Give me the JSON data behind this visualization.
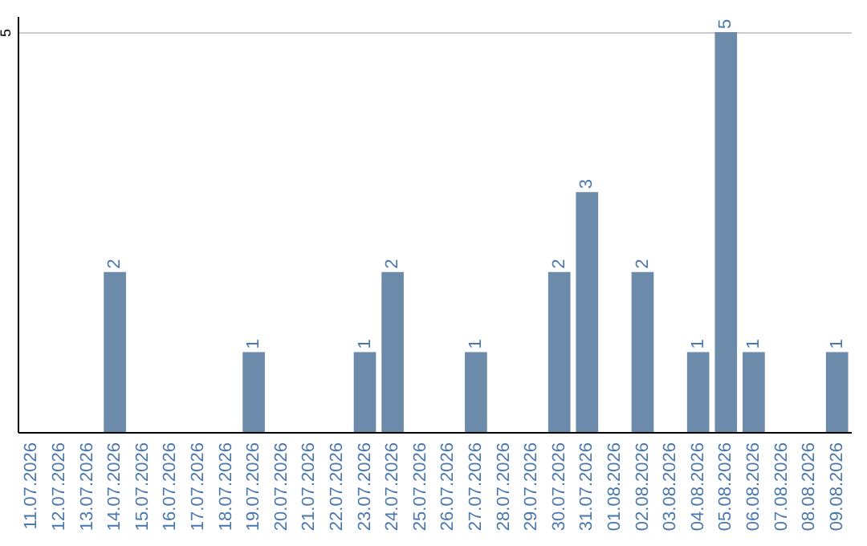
{
  "chart_data": {
    "type": "bar",
    "categories": [
      "11.07.2026",
      "12.07.2026",
      "13.07.2026",
      "14.07.2026",
      "15.07.2026",
      "16.07.2026",
      "17.07.2026",
      "18.07.2026",
      "19.07.2026",
      "20.07.2026",
      "21.07.2026",
      "22.07.2026",
      "23.07.2026",
      "24.07.2026",
      "25.07.2026",
      "26.07.2026",
      "27.07.2026",
      "28.07.2026",
      "29.07.2026",
      "30.07.2026",
      "31.07.2026",
      "01.08.2026",
      "02.08.2026",
      "03.08.2026",
      "04.08.2026",
      "05.08.2026",
      "06.08.2026",
      "07.08.2026",
      "08.08.2026",
      "09.08.2026"
    ],
    "values": [
      0,
      0,
      0,
      2,
      0,
      0,
      0,
      0,
      1,
      0,
      0,
      0,
      1,
      2,
      0,
      0,
      1,
      0,
      0,
      2,
      3,
      0,
      2,
      0,
      1,
      5,
      1,
      0,
      0,
      1
    ],
    "value_labels": [
      null,
      null,
      null,
      "2",
      null,
      null,
      null,
      null,
      "1",
      null,
      null,
      null,
      "1",
      "2",
      null,
      null,
      "1",
      null,
      null,
      "2",
      "3",
      null,
      "2",
      null,
      "1",
      "5",
      "1",
      null,
      null,
      "1"
    ],
    "color": "#6c8bab",
    "ylim": [
      0,
      5.2
    ],
    "yticks": [
      5
    ],
    "grid": "y"
  }
}
